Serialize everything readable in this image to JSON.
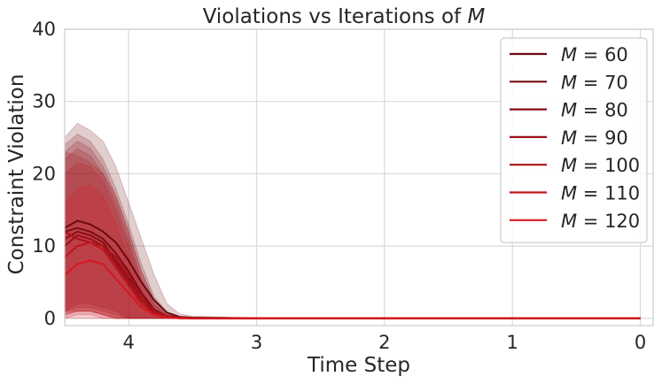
{
  "chart_data": {
    "type": "line",
    "title": "Violations vs Iterations of M",
    "title_parts": {
      "prefix": "Violations vs Iterations of ",
      "italic": "M"
    },
    "xlabel": "Time Step",
    "ylabel": "Constraint Violation",
    "xlim": [
      4.5,
      -0.1
    ],
    "ylim": [
      -1,
      40
    ],
    "x_inverted": true,
    "xticks": [
      4,
      3,
      2,
      1,
      0
    ],
    "yticks": [
      0,
      10,
      20,
      30,
      40
    ],
    "grid": true,
    "legend_position": "top-right",
    "shaded_band": true,
    "series": [
      {
        "name": "M = 60",
        "label_parts": {
          "var": "M",
          "value": "60"
        },
        "color": "#6b0a10",
        "x": [
          4.5,
          4.4,
          4.3,
          4.2,
          4.1,
          4.0,
          3.9,
          3.8,
          3.7,
          3.6,
          3.5,
          3.0,
          2.0,
          1.0,
          0.0
        ],
        "y": [
          12.5,
          13.5,
          13.0,
          12.0,
          10.5,
          8.0,
          5.0,
          2.5,
          0.8,
          0.2,
          0.1,
          0.0,
          0.0,
          0.0,
          0.0
        ],
        "lower": [
          1.0,
          2.0,
          2.0,
          1.5,
          1.0,
          0.0,
          0.0,
          0.0,
          0.0,
          0.0,
          0.0,
          0.0,
          0.0,
          0.0,
          0.0
        ],
        "upper": [
          25.0,
          27.0,
          26.0,
          24.5,
          21.0,
          16.0,
          11.0,
          6.0,
          2.0,
          0.6,
          0.3,
          0.1,
          0.0,
          0.0,
          0.0
        ]
      },
      {
        "name": "M = 70",
        "label_parts": {
          "var": "M",
          "value": "70"
        },
        "color": "#7a0c12",
        "x": [
          4.5,
          4.4,
          4.3,
          4.2,
          4.1,
          4.0,
          3.9,
          3.8,
          3.7,
          3.6,
          3.5,
          3.0,
          2.0,
          1.0,
          0.0
        ],
        "y": [
          12.0,
          12.5,
          12.0,
          11.0,
          9.0,
          6.5,
          3.5,
          1.2,
          0.3,
          0.1,
          0.0,
          0.0,
          0.0,
          0.0,
          0.0
        ],
        "lower": [
          1.0,
          1.5,
          1.5,
          1.0,
          0.5,
          0.0,
          0.0,
          0.0,
          0.0,
          0.0,
          0.0,
          0.0,
          0.0,
          0.0,
          0.0
        ],
        "upper": [
          24.0,
          25.5,
          24.5,
          22.0,
          18.0,
          13.0,
          7.5,
          3.0,
          0.8,
          0.3,
          0.1,
          0.0,
          0.0,
          0.0,
          0.0
        ]
      },
      {
        "name": "M = 80",
        "label_parts": {
          "var": "M",
          "value": "80"
        },
        "color": "#8a0d14",
        "x": [
          4.5,
          4.4,
          4.3,
          4.2,
          4.1,
          4.0,
          3.9,
          3.8,
          3.7,
          3.6,
          3.5,
          3.0,
          2.0,
          1.0,
          0.0
        ],
        "y": [
          11.0,
          12.0,
          11.5,
          10.5,
          8.0,
          5.5,
          3.0,
          1.0,
          0.3,
          0.1,
          0.0,
          0.0,
          0.0,
          0.0,
          0.0
        ],
        "lower": [
          0.5,
          1.0,
          1.0,
          0.5,
          0.0,
          0.0,
          0.0,
          0.0,
          0.0,
          0.0,
          0.0,
          0.0,
          0.0,
          0.0,
          0.0
        ],
        "upper": [
          23.0,
          24.5,
          23.5,
          21.0,
          17.0,
          12.0,
          6.5,
          2.5,
          0.7,
          0.2,
          0.1,
          0.0,
          0.0,
          0.0,
          0.0
        ]
      },
      {
        "name": "M = 90",
        "label_parts": {
          "var": "M",
          "value": "90"
        },
        "color": "#9c0f16",
        "x": [
          4.5,
          4.4,
          4.3,
          4.2,
          4.1,
          4.0,
          3.9,
          3.8,
          3.7,
          3.6,
          3.5,
          3.0,
          2.0,
          1.0,
          0.0
        ],
        "y": [
          10.0,
          11.5,
          11.0,
          10.0,
          7.5,
          5.0,
          2.5,
          0.8,
          0.2,
          0.1,
          0.0,
          0.0,
          0.0,
          0.0,
          0.0
        ],
        "lower": [
          0.5,
          1.0,
          1.0,
          0.5,
          0.0,
          0.0,
          0.0,
          0.0,
          0.0,
          0.0,
          0.0,
          0.0,
          0.0,
          0.0,
          0.0
        ],
        "upper": [
          22.0,
          23.5,
          22.5,
          20.0,
          16.0,
          11.0,
          5.5,
          2.0,
          0.5,
          0.2,
          0.1,
          0.0,
          0.0,
          0.0,
          0.0
        ]
      },
      {
        "name": "M = 100",
        "label_parts": {
          "var": "M",
          "value": "100"
        },
        "color": "#ad1118",
        "x": [
          4.5,
          4.4,
          4.3,
          4.2,
          4.1,
          4.0,
          3.9,
          3.8,
          3.7,
          3.6,
          3.5,
          3.0,
          2.0,
          1.0,
          0.0
        ],
        "y": [
          12.0,
          11.0,
          10.5,
          10.0,
          8.5,
          6.0,
          3.0,
          1.0,
          0.3,
          0.1,
          0.0,
          0.0,
          0.0,
          0.0,
          0.0
        ],
        "lower": [
          1.0,
          1.0,
          1.0,
          0.5,
          0.0,
          0.0,
          0.0,
          0.0,
          0.0,
          0.0,
          0.0,
          0.0,
          0.0,
          0.0,
          0.0
        ],
        "upper": [
          23.0,
          22.5,
          21.5,
          20.0,
          17.0,
          12.0,
          6.5,
          2.5,
          0.7,
          0.2,
          0.1,
          0.0,
          0.0,
          0.0,
          0.0
        ]
      },
      {
        "name": "M = 110",
        "label_parts": {
          "var": "M",
          "value": "110"
        },
        "color": "#c0141c",
        "x": [
          4.5,
          4.4,
          4.3,
          4.2,
          4.1,
          4.0,
          3.9,
          3.8,
          3.7,
          3.6,
          3.5,
          3.0,
          2.0,
          1.0,
          0.0
        ],
        "y": [
          8.5,
          10.0,
          10.5,
          9.5,
          7.0,
          4.5,
          2.0,
          0.6,
          0.2,
          0.0,
          0.0,
          0.0,
          0.0,
          0.0,
          0.0
        ],
        "lower": [
          0.0,
          0.5,
          0.5,
          0.0,
          0.0,
          0.0,
          0.0,
          0.0,
          0.0,
          0.0,
          0.0,
          0.0,
          0.0,
          0.0,
          0.0
        ],
        "upper": [
          20.0,
          21.5,
          21.0,
          19.0,
          15.0,
          10.0,
          5.0,
          1.8,
          0.5,
          0.1,
          0.0,
          0.0,
          0.0,
          0.0,
          0.0
        ]
      },
      {
        "name": "M = 120",
        "label_parts": {
          "var": "M",
          "value": "120"
        },
        "color": "#d9161f",
        "x": [
          4.5,
          4.4,
          4.3,
          4.2,
          4.1,
          4.0,
          3.9,
          3.8,
          3.7,
          3.6,
          3.5,
          3.0,
          2.0,
          1.0,
          0.0
        ],
        "y": [
          6.0,
          7.5,
          8.0,
          7.5,
          5.5,
          3.5,
          1.5,
          0.5,
          0.1,
          0.0,
          0.0,
          0.0,
          0.0,
          0.0,
          0.0
        ],
        "lower": [
          0.0,
          0.0,
          0.0,
          0.0,
          0.0,
          0.0,
          0.0,
          0.0,
          0.0,
          0.0,
          0.0,
          0.0,
          0.0,
          0.0,
          0.0
        ],
        "upper": [
          16.0,
          18.0,
          18.5,
          17.0,
          13.0,
          8.5,
          4.0,
          1.2,
          0.3,
          0.1,
          0.0,
          0.0,
          0.0,
          0.0,
          0.0
        ]
      }
    ]
  }
}
